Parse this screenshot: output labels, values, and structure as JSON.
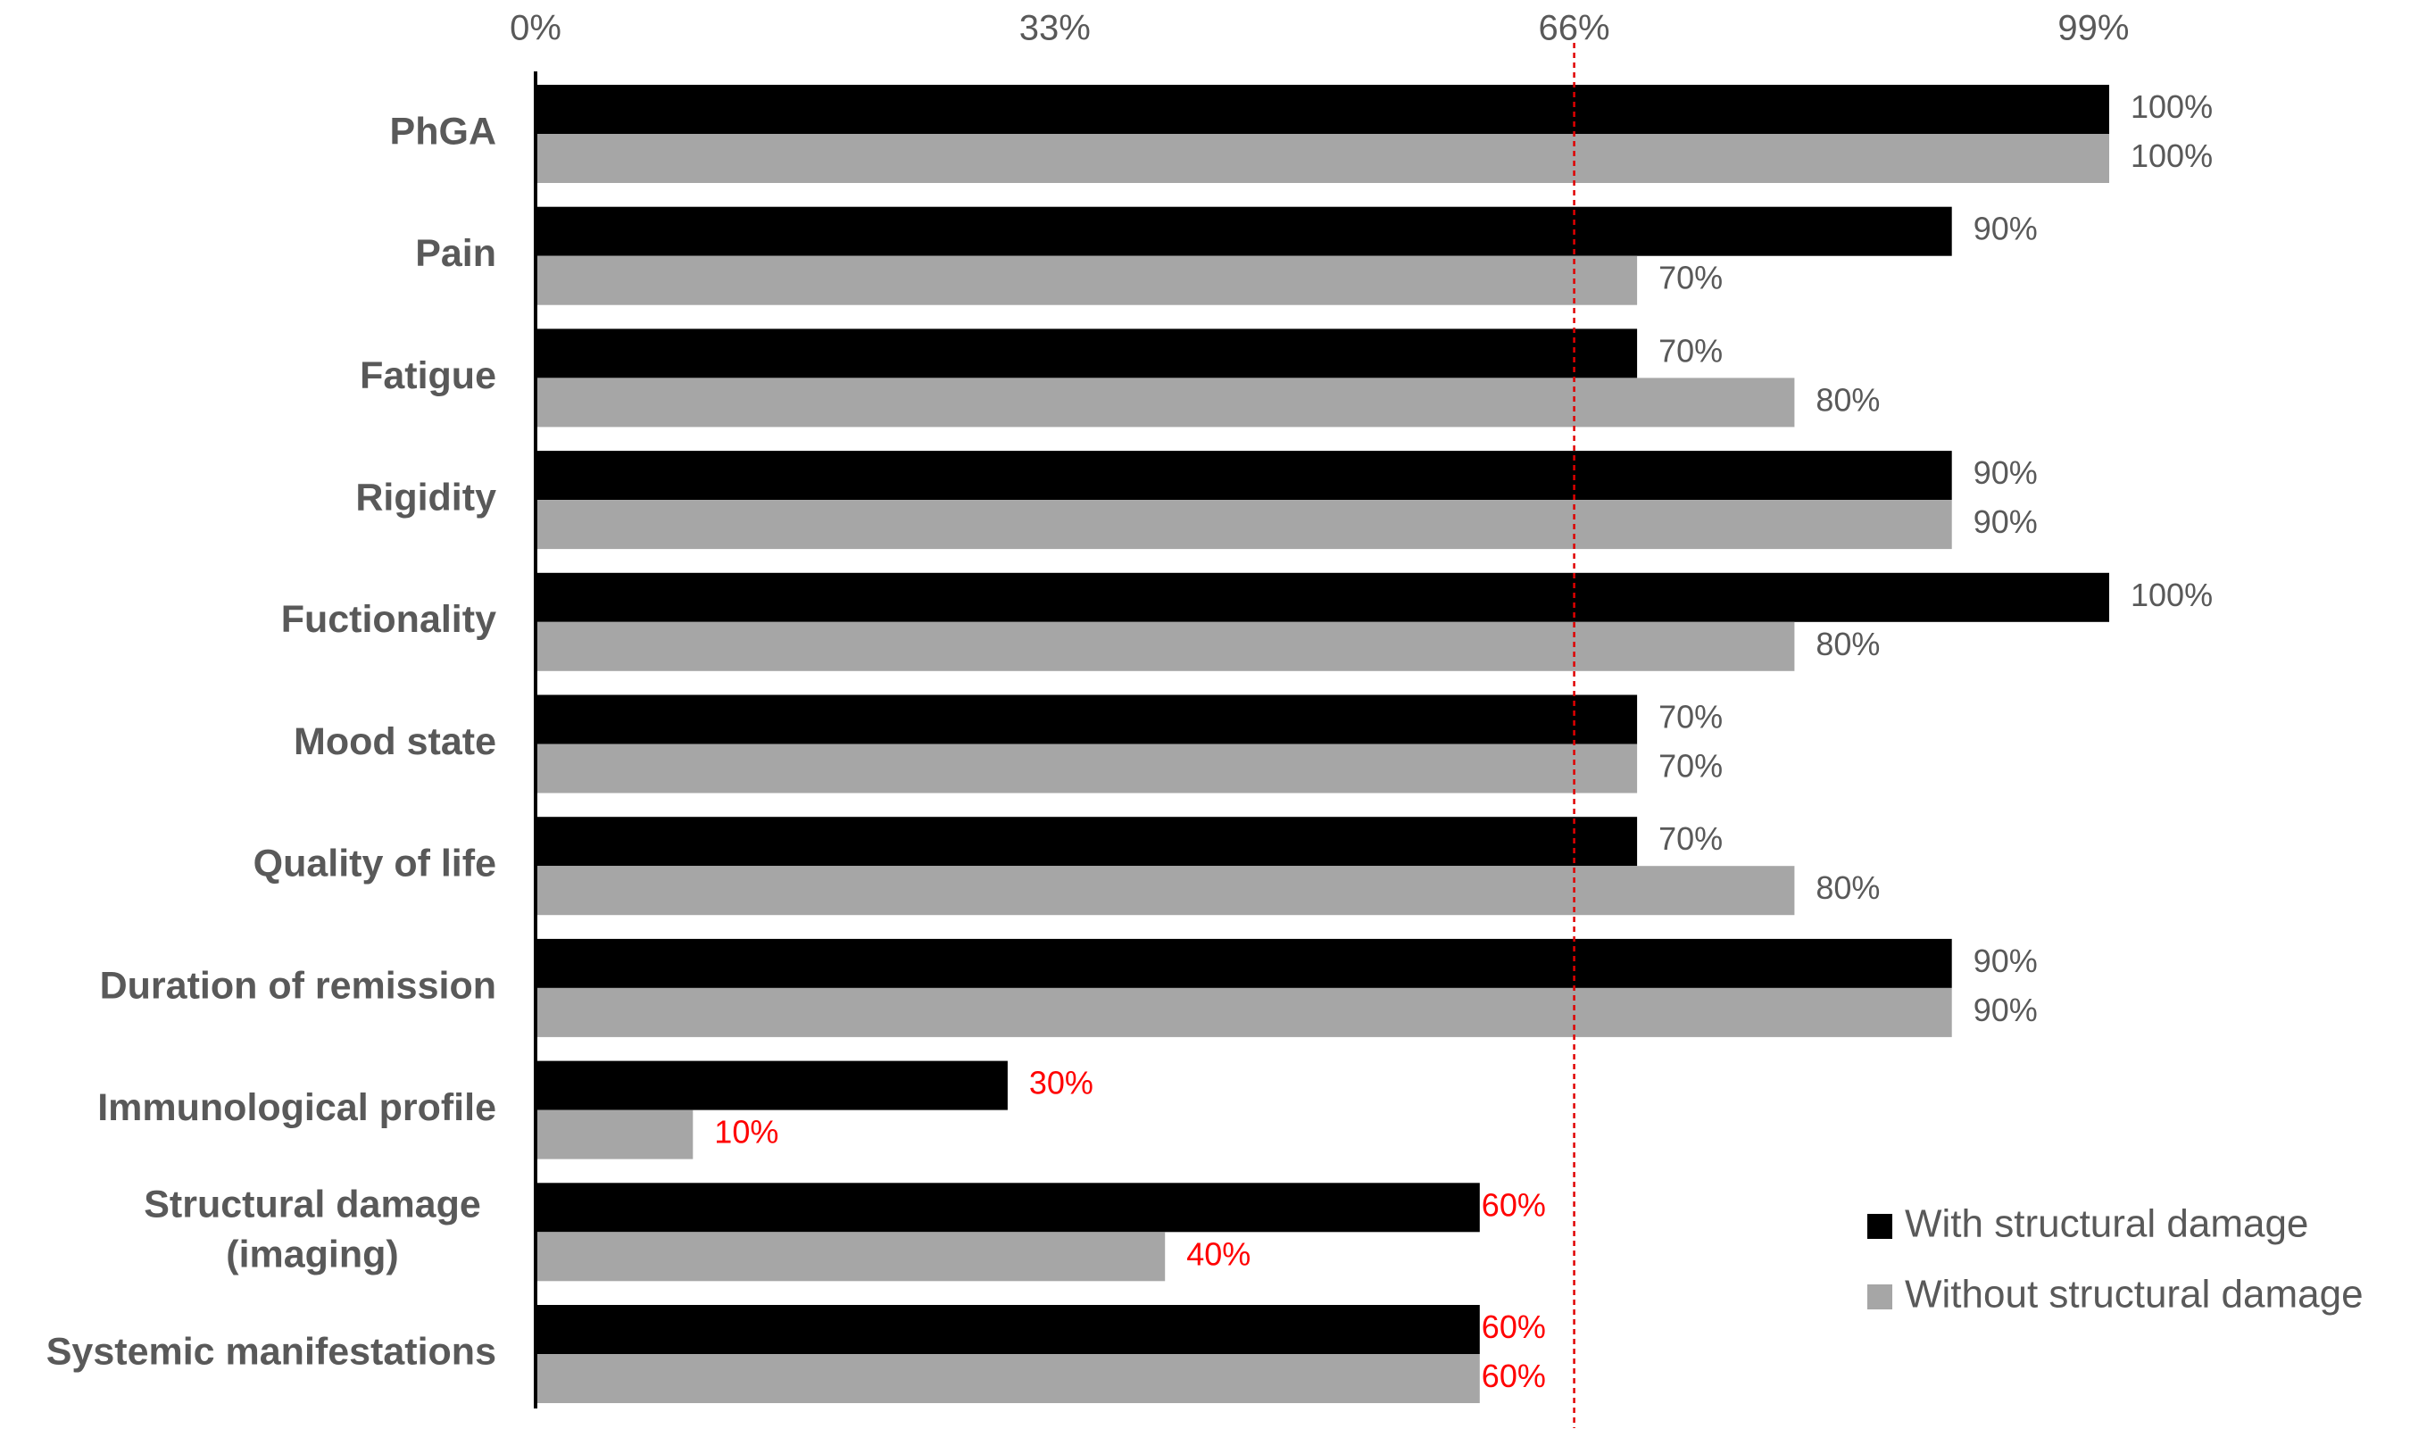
{
  "chart_data": {
    "type": "bar",
    "orientation": "horizontal",
    "categories": [
      [
        "PhGA"
      ],
      [
        "Pain"
      ],
      [
        "Fatigue"
      ],
      [
        "Rigidity"
      ],
      [
        "Fuctionality"
      ],
      [
        "Mood state"
      ],
      [
        "Quality of life"
      ],
      [
        "Duration of remission"
      ],
      [
        "Immunological profile"
      ],
      [
        "Structural damage",
        "(imaging)"
      ],
      [
        "Systemic manifestations"
      ]
    ],
    "series": [
      {
        "name": "With structural damage",
        "color": "#000000",
        "values": [
          100,
          90,
          70,
          90,
          100,
          70,
          70,
          90,
          30,
          60,
          60
        ],
        "labels": [
          "100%",
          "90%",
          "70%",
          "90%",
          "100%",
          "70%",
          "70%",
          "90%",
          "30%",
          "60%",
          "60%"
        ]
      },
      {
        "name": "Without structural damage",
        "color": "#a6a6a6",
        "values": [
          100,
          70,
          80,
          90,
          80,
          70,
          80,
          90,
          10,
          40,
          60
        ],
        "labels": [
          "100%",
          "70%",
          "80%",
          "90%",
          "80%",
          "70%",
          "80%",
          "90%",
          "10%",
          "40%",
          "60%"
        ]
      }
    ],
    "xlim": [
      0,
      100
    ],
    "x_ticks": [
      0,
      33,
      66,
      99
    ],
    "x_tick_labels": [
      "0%",
      "33%",
      "66%",
      "99%"
    ],
    "x_axis_position": "top",
    "threshold": 66,
    "threshold_color": "#e00000",
    "highlight_below": 66,
    "highlight_label_color": "#ff0000",
    "default_label_color": "#595959",
    "legend_position": "bottom-right",
    "grid": false,
    "title": "",
    "xlabel": "",
    "ylabel": ""
  }
}
